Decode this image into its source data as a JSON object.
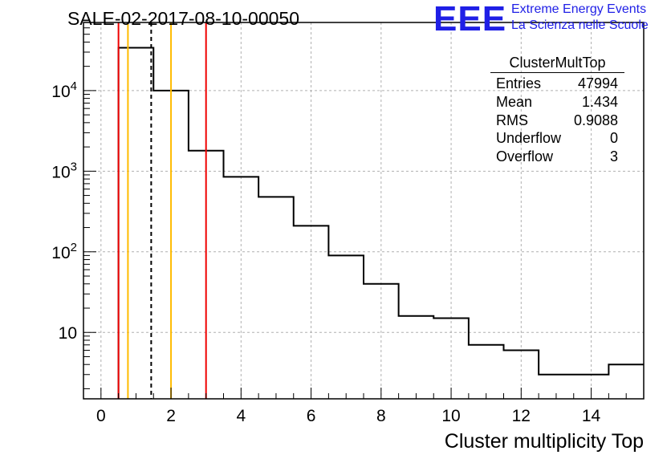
{
  "title": "SALE-02-2017-08-10-00050",
  "logo": {
    "mark": "EEE",
    "line1": "Extreme Energy Events",
    "line2": "La Scienza nelle Scuole",
    "color": "#1f1fe6"
  },
  "stats_box": {
    "name": "ClusterMultTop",
    "rows": [
      {
        "label": "Entries",
        "value": "47994"
      },
      {
        "label": "Mean",
        "value": "1.434"
      },
      {
        "label": "RMS",
        "value": "0.9088"
      },
      {
        "label": "Underflow",
        "value": "0"
      },
      {
        "label": "Overflow",
        "value": "3"
      }
    ]
  },
  "chart_data": {
    "type": "histogram",
    "title": "SALE-02-2017-08-10-00050",
    "xlabel": "Cluster multiplicity Top",
    "ylabel": "",
    "x_ticks": [
      "0",
      "2",
      "4",
      "6",
      "8",
      "10",
      "12",
      "14"
    ],
    "y_ticks": [
      "10",
      "10^2",
      "10^3",
      "10^4"
    ],
    "xlim": [
      -0.5,
      15.5
    ],
    "ylim": [
      1.5,
      70000
    ],
    "y_scale": "log",
    "grid": true,
    "bin_edges": [
      0.5,
      1.5,
      2.5,
      3.5,
      4.5,
      5.5,
      6.5,
      7.5,
      8.5,
      9.5,
      10.5,
      11.5,
      12.5,
      13.5,
      14.5,
      15.5
    ],
    "counts": [
      34000,
      10000,
      1800,
      850,
      480,
      210,
      90,
      40,
      16,
      15,
      7,
      6,
      3,
      3,
      4
    ],
    "vertical_lines": [
      {
        "x": 0.5,
        "color": "#ee0000",
        "style": "solid"
      },
      {
        "x": 0.77,
        "color": "#ffbb00",
        "style": "solid"
      },
      {
        "x": 1.434,
        "color": "#000000",
        "style": "dashed"
      },
      {
        "x": 2.0,
        "color": "#ffbb00",
        "style": "solid"
      },
      {
        "x": 3.0,
        "color": "#ee0000",
        "style": "solid"
      }
    ]
  }
}
